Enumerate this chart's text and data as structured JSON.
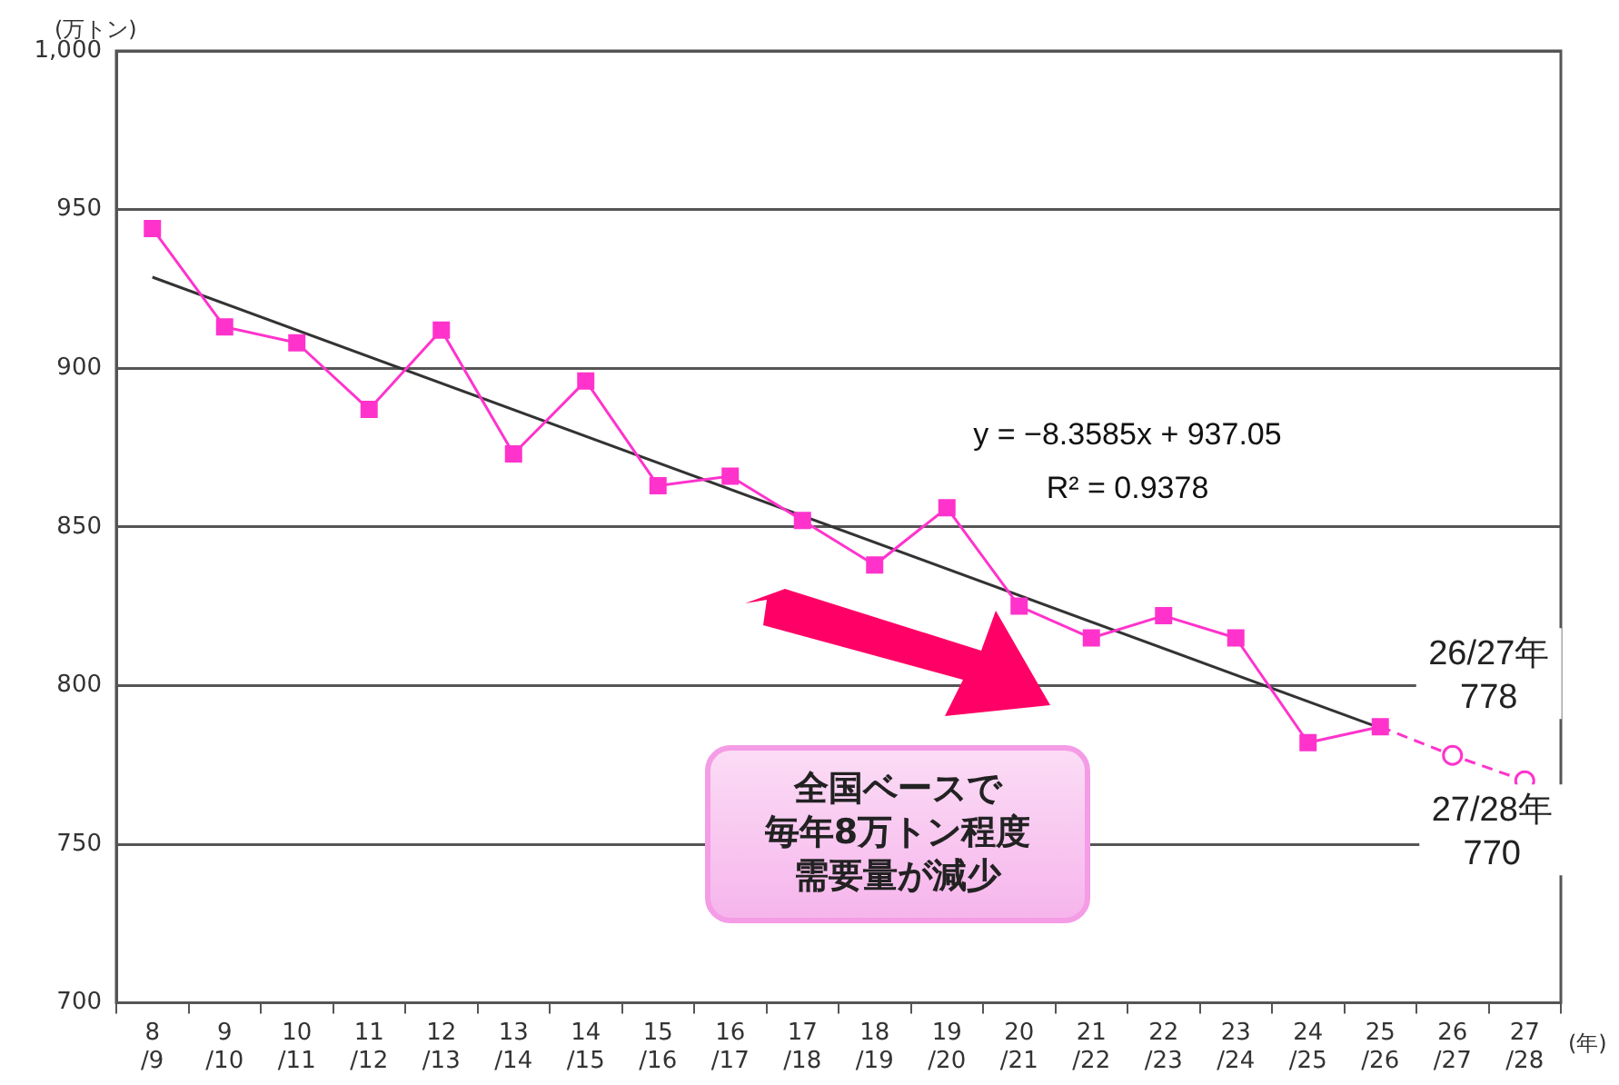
{
  "chart_data": {
    "type": "line",
    "ylabel": "(万トン)",
    "xlabel": "(年)",
    "categories": [
      "8\n/9",
      "9\n/10",
      "10\n/11",
      "11\n/12",
      "12\n/13",
      "13\n/14",
      "14\n/15",
      "15\n/16",
      "16\n/17",
      "17\n/18",
      "18\n/19",
      "19\n/20",
      "20\n/21",
      "21\n/22",
      "22\n/23",
      "23\n/24",
      "24\n/25",
      "25\n/26",
      "26\n/27",
      "27\n/28"
    ],
    "series": [
      {
        "color": "#ff33cc",
        "marker": "square",
        "line_style": "solid",
        "values": [
          944,
          913,
          908,
          887,
          912,
          873,
          896,
          863,
          866,
          852,
          838,
          856,
          825,
          815,
          822,
          815,
          782,
          787,
          null,
          null
        ]
      },
      {
        "type": "line",
        "color": "#333333",
        "marker": "none",
        "line_style": "solid",
        "values": [
          928.7,
          null,
          null,
          null,
          null,
          null,
          null,
          null,
          null,
          null,
          null,
          null,
          null,
          null,
          null,
          null,
          null,
          786.6,
          null,
          null
        ]
      },
      {
        "color": "#ff33cc",
        "marker": "circle",
        "line_style": "dashed",
        "values": [
          null,
          null,
          null,
          null,
          null,
          null,
          null,
          null,
          null,
          null,
          null,
          null,
          null,
          null,
          null,
          null,
          null,
          787,
          778,
          770
        ]
      }
    ],
    "ylim": [
      700,
      1000
    ],
    "yticks": [
      700,
      750,
      800,
      850,
      900,
      950,
      {
        "value": 1000,
        "label": "1,000"
      }
    ],
    "grid": "y",
    "legend": false,
    "annotations": [
      "y = −8.3585x + 937.05",
      "R² = 0.9378",
      {
        "text": "26/27年\n778",
        "x": "26\n/27",
        "y": 778
      },
      {
        "text": "27/28年\n770",
        "x": "27\n/28",
        "y": 770
      },
      "全国ベースで",
      "毎年8万トン程度",
      "需要量が減少"
    ]
  }
}
